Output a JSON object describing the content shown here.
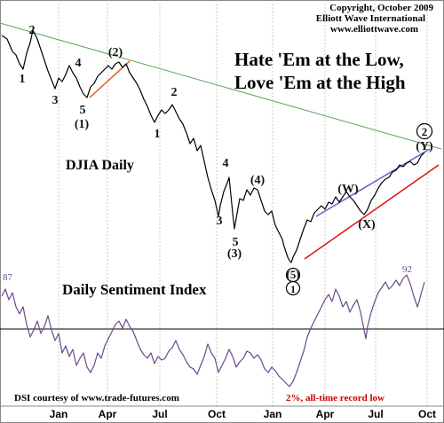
{
  "header": {
    "copyright": "Copyright, October 2009",
    "publisher": "Elliott Wave International",
    "website": "www.elliottwave.com"
  },
  "headline": {
    "line1": "Hate 'Em at the Low,",
    "line2": "Love 'Em at the High"
  },
  "upper_panel_label": "DJIA Daily",
  "lower_panel_label": "Daily Sentiment Index",
  "footer": {
    "credit": "DSI courtesy of www.trade-futures.com",
    "record_note": "2%, all-time record low"
  },
  "colors": {
    "price_line": "#000000",
    "dsi_line": "#6a4a8c",
    "upper_trendline": "#5aa55a",
    "red_channel": "#e01010",
    "blue_channel": "#6060cc",
    "orange_line": "#e06010",
    "record_note": "#cc0000",
    "reference_line": "#000000"
  },
  "chart_data": [
    {
      "type": "line",
      "title": "DJIA Daily",
      "x_tick_labels": [
        "Jan",
        "Apr",
        "Jul",
        "Oct",
        "Jan",
        "Apr",
        "Jul",
        "Oct"
      ],
      "grid": true,
      "wave_labels": [
        "2",
        "1",
        "4",
        "3",
        "5",
        "(1)",
        "(2)",
        "2",
        "1",
        "4",
        "3",
        "5",
        "(3)",
        "(4)",
        "5",
        "1",
        "(5)",
        "(W)",
        "(X)",
        "(Y)",
        "2"
      ]
    },
    {
      "type": "line",
      "title": "Daily Sentiment Index",
      "annotations": [
        "87",
        "92",
        "2%, all-time record low"
      ],
      "grid": true
    }
  ]
}
